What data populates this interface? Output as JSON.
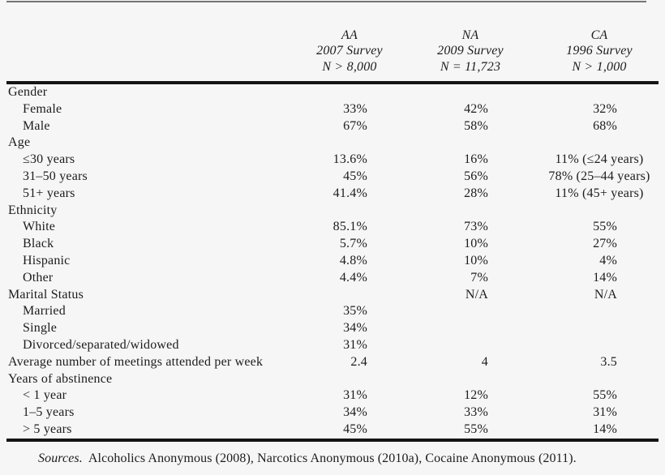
{
  "header": {
    "columns": [
      {
        "name": "AA",
        "survey": "2007 Survey",
        "n": "N > 8,000"
      },
      {
        "name": "NA",
        "survey": "2009 Survey",
        "n": "N = 11,723"
      },
      {
        "name": "CA",
        "survey": "1996 Survey",
        "n": "N > 1,000"
      }
    ]
  },
  "rows": [
    {
      "label": "Gender",
      "indent": false,
      "values": [
        "",
        "",
        ""
      ]
    },
    {
      "label": "Female",
      "indent": true,
      "values": [
        "33%",
        "42%",
        "32%"
      ]
    },
    {
      "label": "Male",
      "indent": true,
      "values": [
        "67%",
        "58%",
        "68%"
      ]
    },
    {
      "label": "Age",
      "indent": false,
      "values": [
        "",
        "",
        ""
      ]
    },
    {
      "label": "≤30 years",
      "indent": true,
      "values": [
        "13.6%",
        "16%",
        "11% (≤24 years)"
      ]
    },
    {
      "label": "31–50 years",
      "indent": true,
      "values": [
        "45%",
        "56%",
        "78% (25–44 years)"
      ]
    },
    {
      "label": "51+ years",
      "indent": true,
      "values": [
        "41.4%",
        "28%",
        "11% (45+ years)"
      ]
    },
    {
      "label": "Ethnicity",
      "indent": false,
      "values": [
        "",
        "",
        ""
      ]
    },
    {
      "label": "White",
      "indent": true,
      "values": [
        "85.1%",
        "73%",
        "55%"
      ]
    },
    {
      "label": "Black",
      "indent": true,
      "values": [
        "5.7%",
        "10%",
        "27%"
      ]
    },
    {
      "label": "Hispanic",
      "indent": true,
      "values": [
        "4.8%",
        "10%",
        "4%"
      ]
    },
    {
      "label": "Other",
      "indent": true,
      "values": [
        "4.4%",
        "7%",
        "14%"
      ]
    },
    {
      "label": "Marital Status",
      "indent": false,
      "values": [
        "",
        "N/A",
        "N/A"
      ]
    },
    {
      "label": "Married",
      "indent": true,
      "values": [
        "35%",
        "",
        ""
      ]
    },
    {
      "label": "Single",
      "indent": true,
      "values": [
        "34%",
        "",
        ""
      ]
    },
    {
      "label": "Divorced/separated/widowed",
      "indent": true,
      "values": [
        "31%",
        "",
        ""
      ]
    },
    {
      "label": "Average number of meetings attended per week",
      "indent": false,
      "values": [
        "2.4",
        "4",
        "3.5"
      ]
    },
    {
      "label": "Years of abstinence",
      "indent": false,
      "values": [
        "",
        "",
        ""
      ]
    },
    {
      "label": "< 1 year",
      "indent": true,
      "values": [
        "31%",
        "12%",
        "55%"
      ]
    },
    {
      "label": "1–5 years",
      "indent": true,
      "values": [
        "34%",
        "33%",
        "31%"
      ]
    },
    {
      "label": "> 5 years",
      "indent": true,
      "values": [
        "45%",
        "55%",
        "14%"
      ]
    }
  ],
  "footer": {
    "sources_label": "Sources.",
    "sources_text": "Alcoholics Anonymous (2008), Narcotics Anonymous (2010a), Cocaine Anonymous (2011)."
  }
}
